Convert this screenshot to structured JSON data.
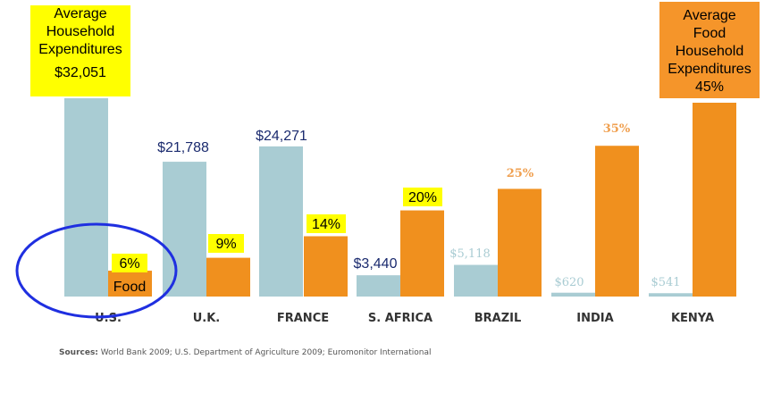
{
  "chart_data": {
    "type": "bar",
    "categories": [
      "U.S.",
      "U.K.",
      "FRANCE",
      "S. AFRICA",
      "BRAZIL",
      "INDIA",
      "KENYA"
    ],
    "series": [
      {
        "name": "Average Household Expenditures",
        "values": [
          32051,
          21788,
          24271,
          3440,
          5118,
          620,
          541
        ],
        "labels": [
          "$32,051",
          "$21,788",
          "$24,271",
          "$3,440",
          "$5,118",
          "$620",
          "$541"
        ]
      },
      {
        "name": "Food",
        "values": [
          6,
          9,
          14,
          20,
          25,
          35,
          45
        ],
        "labels": [
          "6%",
          "9%",
          "14%",
          "20%",
          "25%",
          "35%",
          "45%"
        ]
      }
    ]
  },
  "callouts": {
    "left_lines": [
      "Average",
      "Household",
      "Expenditures",
      "$32,051"
    ],
    "right_lines": [
      "Average",
      "Food",
      "Household",
      "Expenditures",
      "45%"
    ],
    "food_label": "Food"
  },
  "sources_label": "Sources:",
  "sources_text": " World Bank 2009; U.S. Department of Agriculture 2009; Euromonitor International",
  "colors": {
    "expenditure_bar": "#a9ccd3",
    "food_bar": "#f0901e",
    "highlight_yellow": "#ffff00",
    "callout_orange": "#f5952a",
    "circle": "#1f2fe0",
    "dark_label": "#1a2a6e",
    "faded_label": "#a9ccd3",
    "faded_orange_label": "#f0a050"
  }
}
